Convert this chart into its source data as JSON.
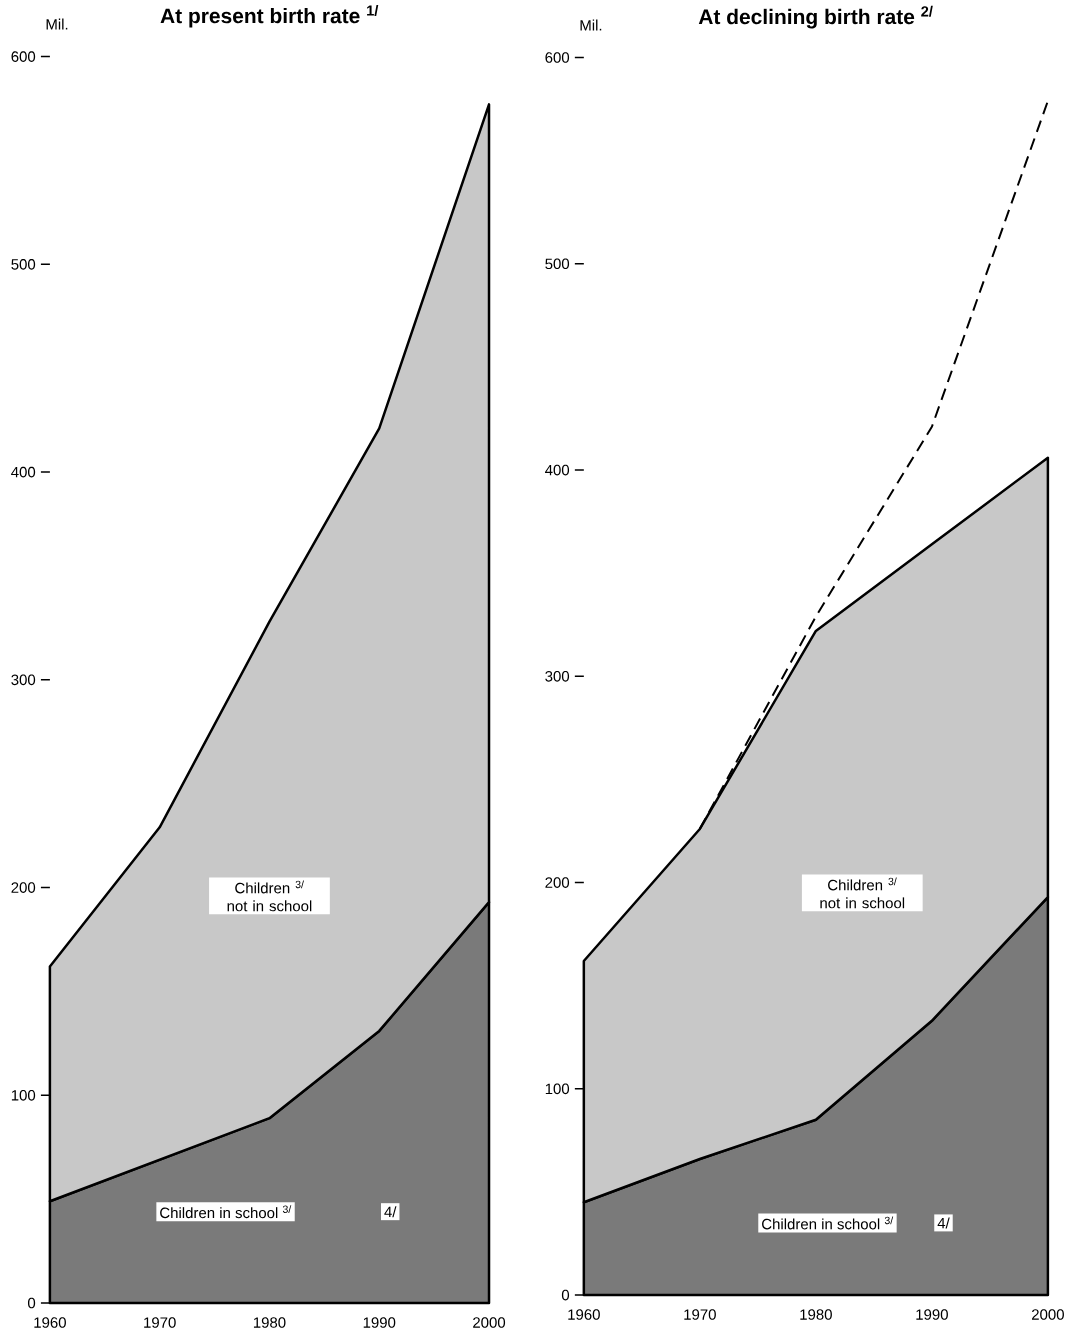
{
  "chart_data": [
    {
      "type": "area",
      "title": "At present birth rate $^{1/}$",
      "ylabel": "Mil.",
      "x": [
        1960,
        1970,
        1980,
        1990,
        2000
      ],
      "stacked": true,
      "series": [
        {
          "color": "#7a7a7a",
          "values": [
            49,
            69,
            89,
            131,
            193
          ]
        },
        {
          "color": "#c8c8c8",
          "values": [
            113,
            160,
            239,
            290,
            384
          ]
        }
      ],
      "xlim": [
        1960,
        2000
      ],
      "ylim": [
        0,
        600
      ],
      "xticks": [
        1960,
        1970,
        1980,
        1990,
        2000
      ],
      "yticks": [
        0,
        100,
        200,
        300,
        400,
        500,
        600
      ],
      "annotations": [
        "Children $^{3/}$ not in school",
        "Children in school $^{3/}$",
        "4/"
      ]
    },
    {
      "type": "area",
      "title": "At declining birth rate $^{2/}$",
      "ylabel": "Mil.",
      "x": [
        1960,
        1970,
        1980,
        1990,
        2000
      ],
      "stacked": true,
      "series": [
        {
          "color": "#7a7a7a",
          "values": [
            45,
            66,
            85,
            133,
            193
          ]
        },
        {
          "color": "#c8c8c8",
          "values": [
            117,
            160,
            237,
            231,
            213
          ]
        },
        {
          "type": "line",
          "line_style": "dashed",
          "color": "#000000",
          "x": [
            1970,
            1980,
            1990,
            2000
          ],
          "values": [
            226,
            329,
            421,
            579
          ]
        }
      ],
      "xlim": [
        1960,
        2000
      ],
      "ylim": [
        0,
        600
      ],
      "xticks": [
        1960,
        1970,
        1980,
        1990,
        2000
      ],
      "yticks": [
        0,
        100,
        200,
        300,
        400,
        500,
        600
      ],
      "annotations": [
        "Children $^{3/}$ not in school",
        "Children in school $^{3/}$",
        "4/"
      ]
    }
  ]
}
